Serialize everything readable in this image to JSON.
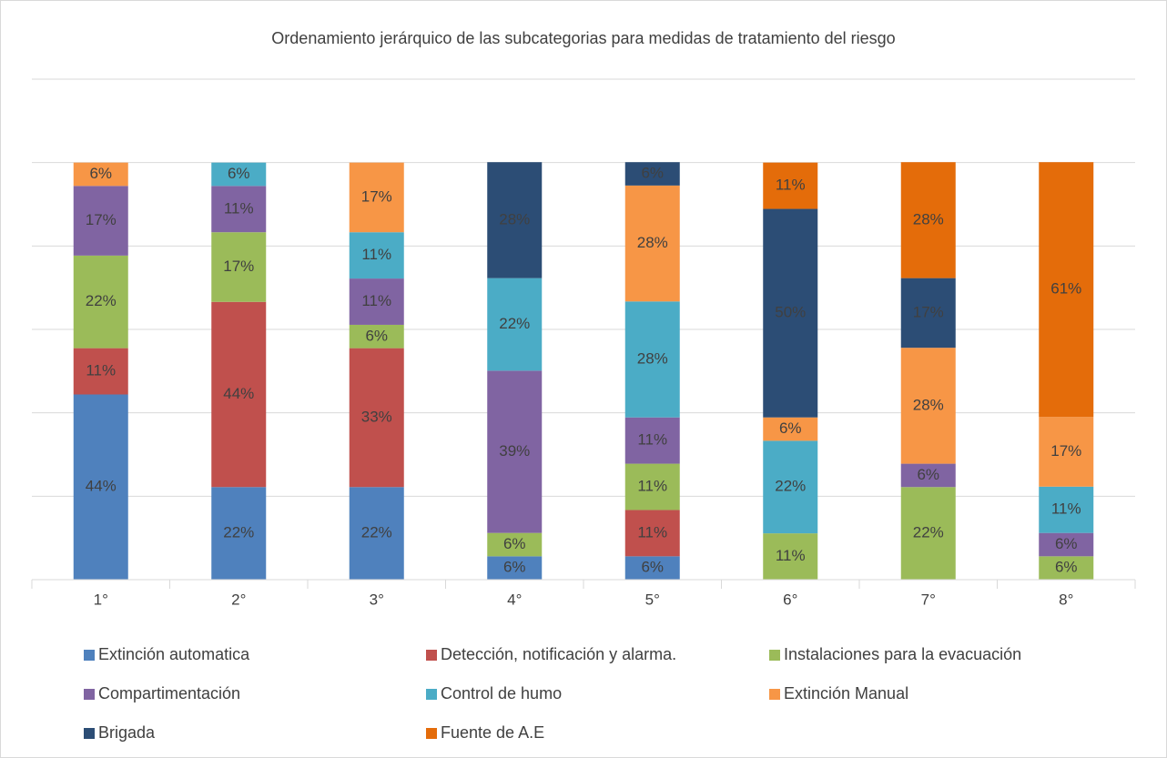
{
  "chart_data": {
    "type": "stacked_bar",
    "title": "Ordenamiento jerárquico de las subcategorias para medidas de tratamiento del riesgo",
    "categories": [
      "1°",
      "2°",
      "3°",
      "4°",
      "5°",
      "6°",
      "7°",
      "8°"
    ],
    "ylim": [
      0,
      120
    ],
    "yticks": [
      0,
      20,
      40,
      60,
      80,
      100,
      120
    ],
    "grid": true,
    "legend": "bottom",
    "series": [
      {
        "name": "Extinción automatica",
        "color": "#4f81bd",
        "values": [
          44.4,
          22.2,
          22.2,
          5.6,
          5.6,
          null,
          null,
          null
        ],
        "value_labels": [
          "44%",
          "22%",
          "22%",
          "6%",
          "6%",
          null,
          null,
          null
        ]
      },
      {
        "name": "Detección, notificación y alarma.",
        "color": "#c0504d",
        "values": [
          11.1,
          44.4,
          33.3,
          null,
          11.1,
          null,
          null,
          null
        ],
        "value_labels": [
          "11%",
          "44%",
          "33%",
          null,
          "11%",
          null,
          null,
          null
        ]
      },
      {
        "name": "Instalaciones para la evacuación",
        "color": "#9bbb59",
        "values": [
          22.2,
          16.7,
          5.6,
          5.6,
          11.1,
          11.1,
          22.2,
          5.6
        ],
        "value_labels": [
          "22%",
          "17%",
          "6%",
          "6%",
          "11%",
          "11%",
          "22%",
          "6%"
        ]
      },
      {
        "name": "Compartimentación",
        "color": "#8064a2",
        "values": [
          16.7,
          11.1,
          11.1,
          38.9,
          11.1,
          null,
          5.6,
          5.6
        ],
        "value_labels": [
          "17%",
          "11%",
          "11%",
          "39%",
          "11%",
          null,
          "6%",
          "6%"
        ]
      },
      {
        "name": "Control de humo",
        "color": "#4bacc6",
        "values": [
          null,
          5.6,
          11.1,
          22.2,
          27.8,
          22.2,
          null,
          11.1
        ],
        "value_labels": [
          null,
          "6%",
          "11%",
          "22%",
          "28%",
          "22%",
          null,
          "11%"
        ]
      },
      {
        "name": "Extinción Manual",
        "color": "#f79646",
        "values": [
          5.6,
          null,
          16.7,
          null,
          27.8,
          5.6,
          27.8,
          16.7
        ],
        "value_labels": [
          "6%",
          null,
          "17%",
          null,
          "28%",
          "6%",
          "28%",
          "17%"
        ]
      },
      {
        "name": "Brigada",
        "color": "#2c4d75",
        "values": [
          null,
          null,
          null,
          27.8,
          5.6,
          50,
          16.7,
          null
        ],
        "value_labels": [
          null,
          null,
          null,
          "28%",
          "6%",
          "50%",
          "17%",
          null
        ]
      },
      {
        "name": "Fuente de A.E",
        "color": "#e46c0a",
        "values": [
          null,
          null,
          null,
          null,
          null,
          11.1,
          27.8,
          61.1
        ],
        "value_labels": [
          null,
          null,
          null,
          null,
          null,
          "11%",
          "28%",
          "61%"
        ]
      }
    ]
  }
}
